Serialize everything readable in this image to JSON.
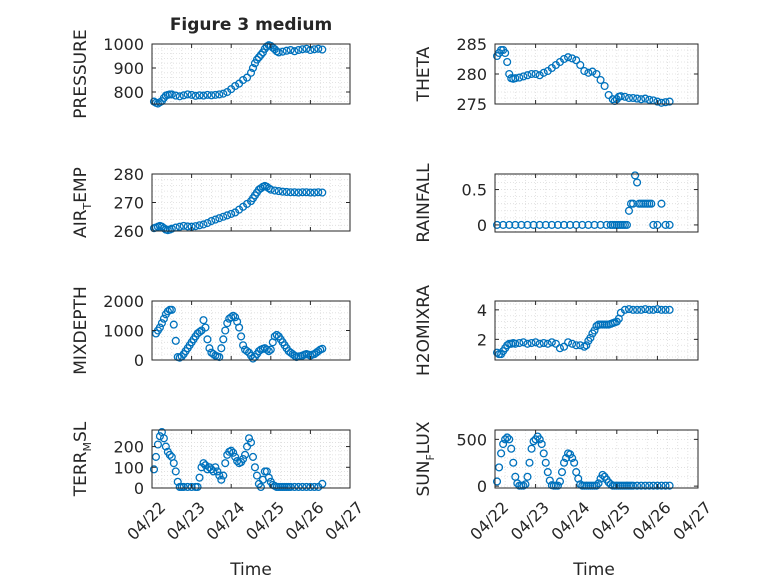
{
  "title": "Figure 3 medium",
  "xlabel": "Time",
  "x_tick_labels": [
    "04/22",
    "04/23",
    "04/24",
    "04/25",
    "04/26",
    "04/27"
  ],
  "marker_color": "#0072BD",
  "chart_data": [
    {
      "type": "scatter",
      "name": "PRESSURE",
      "ylabel": "PRESSURE",
      "ylabel_sub": "",
      "ylabel_tail": "",
      "ylim": [
        750,
        1000
      ],
      "yticks": [
        800,
        900,
        1000
      ],
      "xlim": [
        0,
        5
      ],
      "x": [
        0.05,
        0.1,
        0.15,
        0.2,
        0.25,
        0.3,
        0.35,
        0.4,
        0.45,
        0.5,
        0.6,
        0.7,
        0.8,
        0.9,
        1.0,
        1.1,
        1.2,
        1.3,
        1.4,
        1.5,
        1.6,
        1.7,
        1.8,
        1.9,
        2.0,
        2.1,
        2.2,
        2.3,
        2.4,
        2.5,
        2.55,
        2.6,
        2.65,
        2.7,
        2.75,
        2.8,
        2.85,
        2.9,
        2.95,
        3.0,
        3.05,
        3.1,
        3.15,
        3.2,
        3.3,
        3.4,
        3.5,
        3.6,
        3.7,
        3.8,
        3.9,
        4.0,
        4.1,
        4.2,
        4.3
      ],
      "y": [
        760,
        755,
        752,
        757,
        762,
        775,
        785,
        788,
        790,
        790,
        785,
        782,
        786,
        790,
        788,
        784,
        786,
        785,
        788,
        786,
        788,
        790,
        793,
        800,
        812,
        825,
        835,
        850,
        860,
        880,
        900,
        920,
        935,
        945,
        955,
        965,
        980,
        990,
        995,
        992,
        985,
        978,
        970,
        965,
        968,
        972,
        975,
        970,
        975,
        978,
        980,
        975,
        978,
        980,
        977
      ]
    },
    {
      "type": "scatter",
      "name": "THETA",
      "ylabel": "THETA",
      "ylabel_sub": "",
      "ylabel_tail": "",
      "ylim": [
        275,
        285
      ],
      "yticks": [
        275,
        280,
        285
      ],
      "xlim": [
        0,
        5
      ],
      "x": [
        0.05,
        0.1,
        0.15,
        0.2,
        0.25,
        0.3,
        0.35,
        0.4,
        0.45,
        0.5,
        0.6,
        0.7,
        0.8,
        0.9,
        1.0,
        1.1,
        1.2,
        1.3,
        1.4,
        1.5,
        1.6,
        1.7,
        1.8,
        1.9,
        2.0,
        2.1,
        2.2,
        2.3,
        2.4,
        2.5,
        2.6,
        2.7,
        2.8,
        2.9,
        2.95,
        3.0,
        3.05,
        3.1,
        3.2,
        3.3,
        3.4,
        3.5,
        3.6,
        3.7,
        3.8,
        3.9,
        4.0,
        4.1,
        4.2,
        4.3
      ],
      "y": [
        283,
        283.5,
        284,
        284,
        283.5,
        282,
        280,
        279.3,
        279.2,
        279.3,
        279.4,
        279.6,
        279.8,
        280,
        280,
        279.8,
        280.2,
        280.5,
        281,
        281.5,
        282,
        282.5,
        282.8,
        282.6,
        282.3,
        281.5,
        280.5,
        280.2,
        280.4,
        280,
        279,
        278,
        276.5,
        275.8,
        275.5,
        275.8,
        276.2,
        276.3,
        276.2,
        276,
        276,
        275.9,
        275.8,
        275.9,
        275.7,
        275.6,
        275.4,
        275.2,
        275.3,
        275.4
      ]
    },
    {
      "type": "scatter",
      "name": "AIR_TEMP",
      "ylabel": "AIR",
      "ylabel_sub": "T",
      "ylabel_tail": "EMP",
      "ylim": [
        260,
        280
      ],
      "yticks": [
        260,
        270,
        280
      ],
      "xlim": [
        0,
        5
      ],
      "x": [
        0.05,
        0.1,
        0.15,
        0.2,
        0.25,
        0.3,
        0.35,
        0.4,
        0.45,
        0.5,
        0.6,
        0.7,
        0.8,
        0.9,
        1.0,
        1.1,
        1.2,
        1.3,
        1.4,
        1.5,
        1.6,
        1.7,
        1.8,
        1.9,
        2.0,
        2.1,
        2.2,
        2.3,
        2.4,
        2.5,
        2.55,
        2.6,
        2.65,
        2.7,
        2.75,
        2.8,
        2.85,
        2.9,
        2.95,
        3.0,
        3.1,
        3.2,
        3.3,
        3.4,
        3.5,
        3.6,
        3.7,
        3.8,
        3.9,
        4.0,
        4.1,
        4.2,
        4.3
      ],
      "y": [
        261,
        261.2,
        261.5,
        261.8,
        261.5,
        261,
        260.5,
        260.3,
        260.5,
        260.8,
        261.2,
        261.5,
        261.8,
        261.6,
        261.5,
        261.7,
        262,
        262.3,
        262.8,
        263.5,
        264,
        264.5,
        265,
        265.5,
        266,
        266.5,
        267.5,
        268.5,
        269.5,
        270.5,
        271.5,
        272.5,
        273.5,
        274.5,
        275,
        275.5,
        275.8,
        275.5,
        275,
        274.5,
        274.2,
        274,
        273.8,
        273.7,
        273.6,
        273.6,
        273.5,
        273.6,
        273.6,
        273.5,
        273.5,
        273.6,
        273.5
      ]
    },
    {
      "type": "scatter",
      "name": "RAINFALL",
      "ylabel": "RAINFALL",
      "ylabel_sub": "",
      "ylabel_tail": "",
      "ylim": [
        -0.1,
        0.72
      ],
      "yticks": [
        0,
        0.5
      ],
      "xlim": [
        0,
        5
      ],
      "x": [
        0.05,
        0.2,
        0.35,
        0.5,
        0.65,
        0.8,
        0.95,
        1.1,
        1.25,
        1.4,
        1.55,
        1.7,
        1.85,
        2.0,
        2.15,
        2.3,
        2.45,
        2.6,
        2.75,
        2.85,
        2.9,
        2.95,
        3.0,
        3.05,
        3.1,
        3.15,
        3.2,
        3.25,
        3.3,
        3.35,
        3.4,
        3.45,
        3.5,
        3.55,
        3.6,
        3.65,
        3.7,
        3.75,
        3.8,
        3.85,
        3.9,
        4.0,
        4.1,
        4.2,
        4.3
      ],
      "y": [
        0,
        0,
        0,
        0,
        0,
        0,
        0,
        0,
        0,
        0,
        0,
        0,
        0,
        0,
        0,
        0,
        0,
        0,
        0,
        0,
        0,
        0,
        0,
        0,
        0,
        0,
        0,
        0,
        0.2,
        0.3,
        0.3,
        0.7,
        0.6,
        0.3,
        0.3,
        0.3,
        0.3,
        0.3,
        0.3,
        0.3,
        0,
        0,
        0.3,
        0,
        0
      ]
    },
    {
      "type": "scatter",
      "name": "MIXDEPTH",
      "ylabel": "MIXDEPTH",
      "ylabel_sub": "",
      "ylabel_tail": "",
      "ylim": [
        0,
        2000
      ],
      "yticks": [
        0,
        1000,
        2000
      ],
      "xlim": [
        0,
        5
      ],
      "x": [
        0.1,
        0.15,
        0.2,
        0.25,
        0.3,
        0.35,
        0.4,
        0.45,
        0.5,
        0.55,
        0.6,
        0.65,
        0.7,
        0.75,
        0.8,
        0.85,
        0.9,
        0.95,
        1.0,
        1.05,
        1.1,
        1.15,
        1.2,
        1.25,
        1.3,
        1.35,
        1.4,
        1.45,
        1.5,
        1.55,
        1.6,
        1.65,
        1.7,
        1.75,
        1.8,
        1.85,
        1.9,
        1.95,
        2.0,
        2.05,
        2.1,
        2.15,
        2.2,
        2.25,
        2.3,
        2.35,
        2.4,
        2.45,
        2.5,
        2.55,
        2.6,
        2.65,
        2.7,
        2.75,
        2.8,
        2.85,
        2.9,
        2.95,
        3.0,
        3.05,
        3.1,
        3.15,
        3.2,
        3.25,
        3.3,
        3.35,
        3.4,
        3.45,
        3.5,
        3.55,
        3.6,
        3.65,
        3.7,
        3.75,
        3.8,
        3.85,
        3.9,
        3.95,
        4.0,
        4.05,
        4.1,
        4.15,
        4.2,
        4.25,
        4.3
      ],
      "y": [
        900,
        1000,
        1100,
        1250,
        1400,
        1550,
        1650,
        1700,
        1700,
        1200,
        650,
        100,
        80,
        120,
        200,
        300,
        400,
        500,
        600,
        700,
        800,
        900,
        950,
        1000,
        1350,
        1100,
        700,
        400,
        250,
        200,
        150,
        120,
        100,
        400,
        700,
        1000,
        1250,
        1400,
        1450,
        1500,
        1450,
        1300,
        1100,
        800,
        500,
        350,
        300,
        250,
        150,
        50,
        100,
        200,
        300,
        350,
        380,
        400,
        350,
        300,
        350,
        600,
        800,
        850,
        800,
        700,
        600,
        500,
        400,
        300,
        250,
        200,
        150,
        100,
        120,
        130,
        150,
        180,
        200,
        180,
        150,
        180,
        200,
        250,
        300,
        350,
        380
      ]
    },
    {
      "type": "scatter",
      "name": "H2OMIXRA",
      "ylabel": "H2OMIXRA",
      "ylabel_sub": "",
      "ylabel_tail": "",
      "ylim": [
        0.6,
        4.6
      ],
      "yticks": [
        2,
        4
      ],
      "xlim": [
        0,
        5
      ],
      "x": [
        0.05,
        0.1,
        0.15,
        0.2,
        0.25,
        0.3,
        0.35,
        0.4,
        0.45,
        0.5,
        0.6,
        0.7,
        0.8,
        0.9,
        1.0,
        1.1,
        1.2,
        1.3,
        1.4,
        1.5,
        1.6,
        1.7,
        1.8,
        1.9,
        2.0,
        2.1,
        2.2,
        2.25,
        2.3,
        2.35,
        2.4,
        2.45,
        2.5,
        2.55,
        2.6,
        2.65,
        2.7,
        2.75,
        2.8,
        2.85,
        2.9,
        2.95,
        3.0,
        3.05,
        3.1,
        3.2,
        3.3,
        3.4,
        3.5,
        3.6,
        3.7,
        3.8,
        3.9,
        4.0,
        4.1,
        4.2,
        4.3
      ],
      "y": [
        1.1,
        1.0,
        1.0,
        1.2,
        1.4,
        1.6,
        1.7,
        1.7,
        1.75,
        1.7,
        1.75,
        1.8,
        1.7,
        1.75,
        1.8,
        1.7,
        1.75,
        1.7,
        1.8,
        1.7,
        1.4,
        1.5,
        1.8,
        1.7,
        1.6,
        1.6,
        1.5,
        1.6,
        1.9,
        2.1,
        2.4,
        2.6,
        2.9,
        3.0,
        3.0,
        3.0,
        3.0,
        3.0,
        3.0,
        3.05,
        3.1,
        3.15,
        3.2,
        3.4,
        3.8,
        4.0,
        4.05,
        4.0,
        4.0,
        4.0,
        4.05,
        4.0,
        4.0,
        4.05,
        4.0,
        4.0,
        4.0
      ]
    },
    {
      "type": "scatter",
      "name": "TERR_MSL",
      "ylabel": "TERR",
      "ylabel_sub": "M",
      "ylabel_tail": "SL",
      "ylim": [
        0,
        280
      ],
      "yticks": [
        0,
        100,
        200
      ],
      "xlim": [
        0,
        5
      ],
      "x": [
        0.05,
        0.1,
        0.15,
        0.2,
        0.25,
        0.3,
        0.35,
        0.4,
        0.45,
        0.5,
        0.55,
        0.6,
        0.65,
        0.7,
        0.75,
        0.8,
        0.9,
        1.0,
        1.1,
        1.15,
        1.2,
        1.25,
        1.3,
        1.35,
        1.4,
        1.45,
        1.5,
        1.55,
        1.6,
        1.65,
        1.7,
        1.75,
        1.8,
        1.85,
        1.9,
        1.95,
        2.0,
        2.05,
        2.1,
        2.15,
        2.2,
        2.25,
        2.3,
        2.35,
        2.4,
        2.45,
        2.5,
        2.55,
        2.6,
        2.65,
        2.7,
        2.75,
        2.8,
        2.85,
        2.9,
        2.95,
        3.0,
        3.05,
        3.1,
        3.15,
        3.2,
        3.25,
        3.3,
        3.35,
        3.4,
        3.45,
        3.5,
        3.6,
        3.7,
        3.8,
        3.9,
        4.0,
        4.1,
        4.2,
        4.3
      ],
      "y": [
        90,
        150,
        210,
        250,
        270,
        240,
        200,
        175,
        160,
        150,
        120,
        80,
        30,
        5,
        5,
        5,
        5,
        5,
        5,
        5,
        50,
        100,
        120,
        110,
        90,
        100,
        90,
        80,
        100,
        80,
        60,
        40,
        60,
        120,
        160,
        175,
        180,
        170,
        150,
        130,
        120,
        125,
        140,
        160,
        200,
        240,
        220,
        150,
        100,
        60,
        20,
        5,
        40,
        80,
        80,
        50,
        30,
        15,
        10,
        5,
        5,
        5,
        5,
        5,
        5,
        5,
        5,
        5,
        5,
        5,
        5,
        5,
        5,
        5,
        20
      ]
    },
    {
      "type": "scatter",
      "name": "SUN_FLUX",
      "ylabel": "SUN",
      "ylabel_sub": "F",
      "ylabel_tail": "LUX",
      "ylim": [
        -20,
        600
      ],
      "yticks": [
        0,
        500
      ],
      "xlim": [
        0,
        5
      ],
      "x": [
        0.05,
        0.1,
        0.15,
        0.2,
        0.25,
        0.3,
        0.35,
        0.4,
        0.45,
        0.5,
        0.55,
        0.6,
        0.65,
        0.7,
        0.75,
        0.8,
        0.85,
        0.9,
        0.95,
        1.0,
        1.05,
        1.1,
        1.15,
        1.2,
        1.25,
        1.3,
        1.35,
        1.4,
        1.45,
        1.5,
        1.55,
        1.6,
        1.65,
        1.7,
        1.75,
        1.8,
        1.85,
        1.9,
        1.95,
        2.0,
        2.05,
        2.1,
        2.15,
        2.2,
        2.25,
        2.3,
        2.35,
        2.4,
        2.45,
        2.5,
        2.55,
        2.6,
        2.65,
        2.7,
        2.75,
        2.8,
        2.85,
        2.9,
        2.95,
        3.0,
        3.05,
        3.1,
        3.15,
        3.2,
        3.25,
        3.3,
        3.35,
        3.4,
        3.5,
        3.6,
        3.7,
        3.8,
        3.9,
        4.0,
        4.1,
        4.2,
        4.3
      ],
      "y": [
        50,
        200,
        350,
        450,
        500,
        520,
        500,
        400,
        250,
        100,
        30,
        5,
        5,
        5,
        20,
        100,
        250,
        400,
        480,
        500,
        530,
        500,
        450,
        350,
        250,
        150,
        60,
        10,
        5,
        5,
        5,
        50,
        150,
        250,
        300,
        350,
        340,
        300,
        250,
        150,
        80,
        20,
        5,
        5,
        5,
        5,
        5,
        5,
        5,
        5,
        30,
        80,
        120,
        100,
        70,
        40,
        20,
        5,
        5,
        5,
        5,
        5,
        5,
        5,
        5,
        5,
        5,
        5,
        5,
        5,
        5,
        5,
        5,
        5,
        5,
        5,
        5
      ]
    }
  ]
}
